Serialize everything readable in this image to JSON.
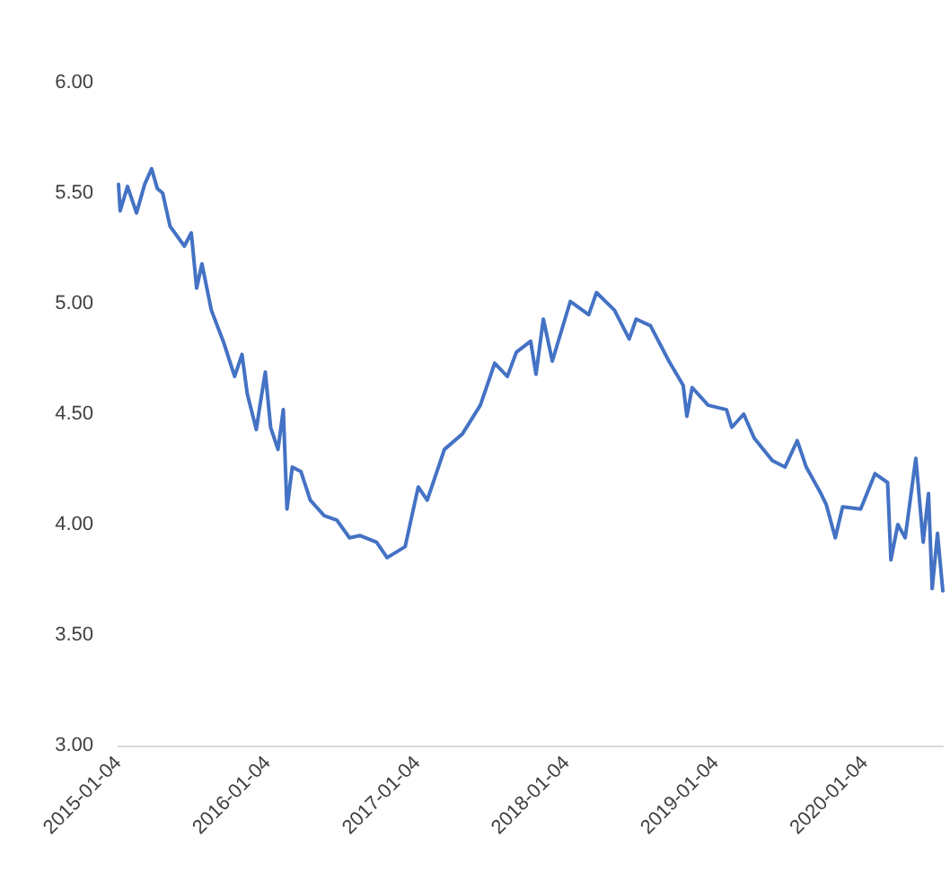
{
  "chart_data": {
    "type": "line",
    "x": [
      "2015-01-04",
      "2015-01-08",
      "2015-01-26",
      "2015-02-17",
      "2015-03-09",
      "2015-03-26",
      "2015-04-09",
      "2015-04-22",
      "2015-05-10",
      "2015-06-14",
      "2015-07-01",
      "2015-07-14",
      "2015-07-27",
      "2015-08-19",
      "2015-09-19",
      "2015-10-15",
      "2015-11-02",
      "2015-11-15",
      "2015-12-07",
      "2015-12-16",
      "2015-12-29",
      "2016-01-11",
      "2016-01-29",
      "2016-02-11",
      "2016-02-20",
      "2016-03-04",
      "2016-03-25",
      "2016-04-17",
      "2016-05-21",
      "2016-06-21",
      "2016-07-22",
      "2016-08-17",
      "2016-09-26",
      "2016-10-22",
      "2016-12-05",
      "2017-01-06",
      "2017-01-28",
      "2017-03-11",
      "2017-04-24",
      "2017-06-07",
      "2017-07-12",
      "2017-08-12",
      "2017-09-03",
      "2017-10-08",
      "2017-10-21",
      "2017-11-08",
      "2017-11-30",
      "2018-01-13",
      "2018-02-27",
      "2018-03-18",
      "2018-05-01",
      "2018-06-06",
      "2018-06-23",
      "2018-07-28",
      "2018-09-11",
      "2018-10-16",
      "2018-10-25",
      "2018-11-07",
      "2018-12-16",
      "2019-01-30",
      "2019-02-12",
      "2019-03-13",
      "2019-04-08",
      "2019-05-22",
      "2019-06-22",
      "2019-07-22",
      "2019-08-13",
      "2019-09-18",
      "2019-10-01",
      "2019-10-23",
      "2019-11-10",
      "2019-12-24",
      "2020-01-28",
      "2020-02-28",
      "2020-03-07",
      "2020-03-24",
      "2020-04-11",
      "2020-05-07",
      "2020-05-25",
      "2020-06-07",
      "2020-06-16",
      "2020-06-29",
      "2020-07-12"
    ],
    "series": [
      {
        "color": "#4472c4",
        "values": [
          5.54,
          5.42,
          5.53,
          5.41,
          5.54,
          5.61,
          5.52,
          5.5,
          5.35,
          5.26,
          5.32,
          5.07,
          5.18,
          4.97,
          4.82,
          4.67,
          4.77,
          4.59,
          4.43,
          4.54,
          4.69,
          4.44,
          4.34,
          4.52,
          4.07,
          4.26,
          4.24,
          4.11,
          4.04,
          4.02,
          3.94,
          3.95,
          3.92,
          3.85,
          3.9,
          4.17,
          4.11,
          4.34,
          4.41,
          4.54,
          4.73,
          4.67,
          4.78,
          4.83,
          4.68,
          4.93,
          4.74,
          5.01,
          4.95,
          5.05,
          4.97,
          4.84,
          4.93,
          4.9,
          4.74,
          4.63,
          4.49,
          4.62,
          4.54,
          4.52,
          4.44,
          4.5,
          4.39,
          4.29,
          4.26,
          4.38,
          4.26,
          4.14,
          4.09,
          3.94,
          4.08,
          4.07,
          4.23,
          4.19,
          3.84,
          4.0,
          3.94,
          4.3,
          3.92,
          4.14,
          3.71,
          3.96,
          3.7
        ]
      }
    ],
    "xlim": [
      "2015-01-04",
      "2020-07-12"
    ],
    "xticks": [
      "2015-01-04",
      "2016-01-04",
      "2017-01-04",
      "2018-01-04",
      "2019-01-04",
      "2020-01-04"
    ],
    "ylim": [
      3,
      6
    ],
    "yticks": [
      {
        "value": 3,
        "label": "3.00"
      },
      {
        "value": 3.5,
        "label": "3.50"
      },
      {
        "value": 4,
        "label": "4.00"
      },
      {
        "value": 4.5,
        "label": "4.50"
      },
      {
        "value": 5,
        "label": "5.00"
      },
      {
        "value": 5.5,
        "label": "5.50"
      },
      {
        "value": 6,
        "label": "6.00"
      }
    ],
    "grid": false,
    "marker": "none",
    "line_style": "solid"
  }
}
